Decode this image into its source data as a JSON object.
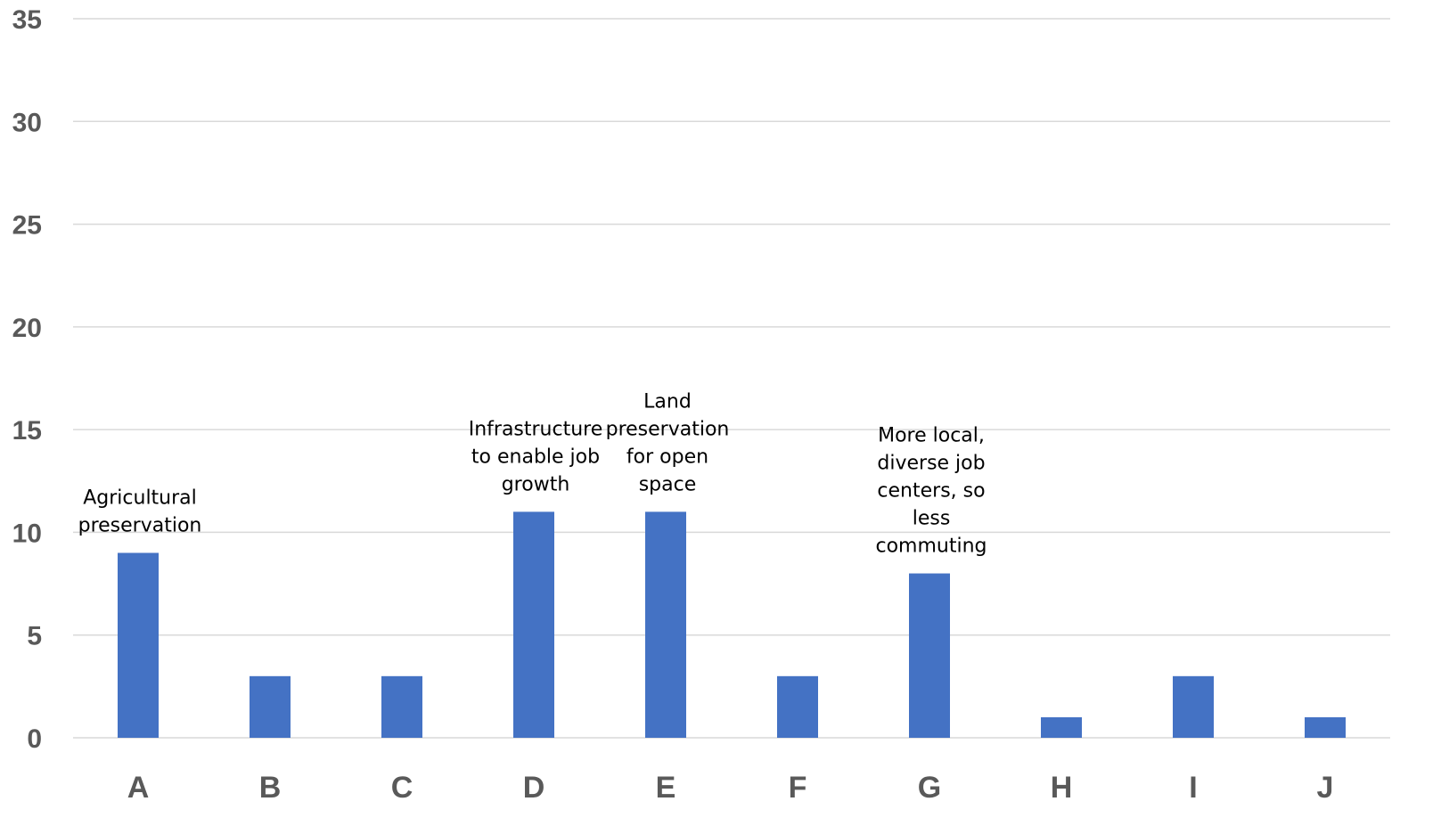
{
  "chart_data": {
    "type": "bar",
    "categories": [
      "A",
      "B",
      "C",
      "D",
      "E",
      "F",
      "G",
      "H",
      "I",
      "J"
    ],
    "values": [
      9,
      3,
      3,
      11,
      11,
      3,
      8,
      1,
      3,
      1
    ],
    "ylim": [
      0,
      35
    ],
    "yticks": [
      0,
      5,
      10,
      15,
      20,
      25,
      30,
      35
    ],
    "grid": true,
    "bar_color": "#4472c4",
    "annotations": [
      {
        "category": "A",
        "lines": [
          "Agricultural",
          "preservation"
        ]
      },
      {
        "category": "D",
        "lines": [
          "Infrastructure",
          "to enable job",
          "growth"
        ]
      },
      {
        "category": "E",
        "lines": [
          "Land",
          "preservation",
          "for open",
          "space"
        ]
      },
      {
        "category": "G",
        "lines": [
          "More local,",
          "diverse job",
          "centers, so",
          "less",
          "commuting"
        ]
      }
    ]
  }
}
